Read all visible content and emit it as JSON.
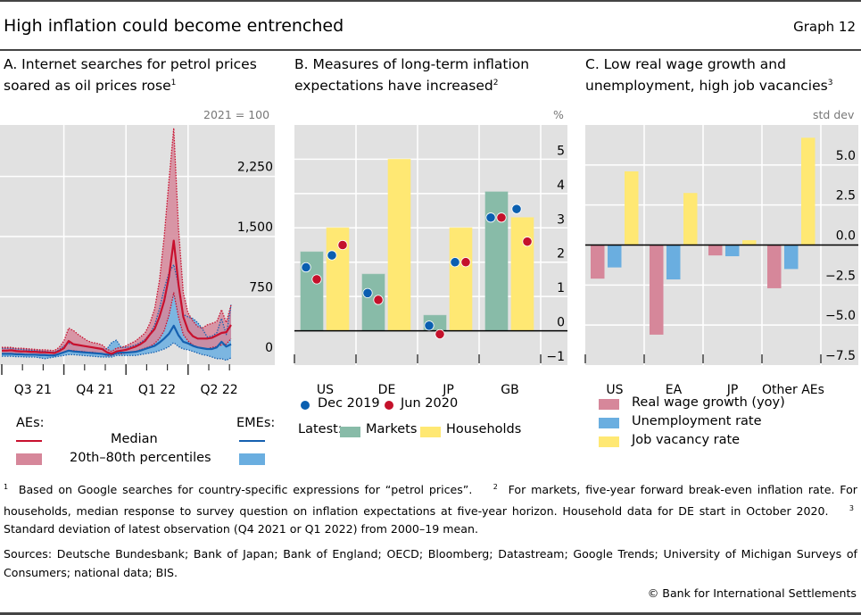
{
  "header": {
    "title": "High inflation could become entrenched",
    "graph_number": "Graph 12"
  },
  "panels": {
    "a": {
      "title_line1": "A. Internet searches for petrol prices",
      "title_line2": "soared as oil prices rose",
      "footnote_mark": "1",
      "unit": "2021 = 100"
    },
    "b": {
      "title_line1": "B. Measures of long-term inflation",
      "title_line2": "expectations have increased",
      "footnote_mark": "2",
      "unit": "%"
    },
    "c": {
      "title_line1": "C. Low real wage growth and",
      "title_line2": "unemployment, high job vacancies",
      "footnote_mark": "3",
      "unit": "std dev"
    }
  },
  "legend_a": {
    "aes": "AEs:",
    "emes": "EMEs:",
    "median": "Median",
    "percentiles": "20th–80th percentiles"
  },
  "legend_b": {
    "dec2019": "Dec 2019",
    "jun2020": "Jun 2020",
    "latest": "Latest:",
    "markets": "Markets",
    "households": "Households"
  },
  "legend_c": {
    "wage": "Real wage growth (yoy)",
    "unemp": "Unemployment rate",
    "vac": "Job vacancy rate"
  },
  "colors": {
    "ae_line": "#c8102e",
    "ae_band": "#d6879a",
    "eme_line": "#1560b0",
    "eme_band": "#6aaee0",
    "markets": "#88bba8",
    "households": "#ffe873",
    "dec2019_dot": "#0a5fb0",
    "jun2020_dot": "#c4112b",
    "wage": "#d6879a",
    "unemp": "#6aaee0",
    "vac": "#ffe873",
    "plot_bg": "#e1e1e1"
  },
  "chart_data": [
    {
      "id": "a",
      "type": "area",
      "title": "Internet searches for petrol prices soared as oil prices rose",
      "ylabel": "2021 = 100",
      "ylim": [
        -100,
        2890
      ],
      "yticks": [
        0,
        750,
        1500,
        2250
      ],
      "ytick_labels": [
        "0",
        "750",
        "1,500",
        "2,250"
      ],
      "xtick_labels": [
        "Q3 21",
        "Q4 21",
        "Q1 22",
        "Q2 22"
      ],
      "x_unit": "week index from start of Q3 2021 (13 weeks per quarter)",
      "x": [
        0,
        1,
        2,
        3,
        4,
        5,
        6,
        7,
        8,
        9,
        10,
        11,
        12,
        13,
        14,
        15,
        16,
        17,
        18,
        19,
        20,
        21,
        22,
        23,
        24,
        25,
        26,
        27,
        28,
        29,
        30,
        31,
        32,
        33,
        34,
        35,
        36,
        37,
        38,
        39,
        40,
        41,
        42,
        43,
        44,
        45,
        46,
        47,
        48
      ],
      "series": [
        {
          "name": "AEs median",
          "values": [
            80,
            80,
            85,
            75,
            70,
            70,
            65,
            65,
            60,
            60,
            55,
            50,
            75,
            110,
            200,
            160,
            150,
            140,
            130,
            120,
            110,
            100,
            60,
            40,
            70,
            80,
            90,
            110,
            130,
            160,
            200,
            280,
            350,
            500,
            700,
            1000,
            1450,
            900,
            500,
            330,
            260,
            230,
            230,
            230,
            240,
            270,
            300,
            310,
            400
          ]
        },
        {
          "name": "AEs 20th percentile",
          "values": [
            40,
            40,
            45,
            40,
            35,
            35,
            30,
            30,
            30,
            25,
            25,
            25,
            40,
            60,
            80,
            80,
            70,
            70,
            60,
            60,
            50,
            40,
            20,
            20,
            40,
            40,
            50,
            60,
            70,
            90,
            110,
            130,
            170,
            230,
            330,
            520,
            800,
            500,
            280,
            200,
            150,
            120,
            110,
            100,
            120,
            130,
            150,
            160,
            230
          ]
        },
        {
          "name": "AEs 80th percentile",
          "values": [
            120,
            120,
            120,
            110,
            110,
            105,
            100,
            95,
            90,
            90,
            85,
            80,
            120,
            200,
            360,
            330,
            280,
            240,
            200,
            180,
            170,
            150,
            100,
            70,
            110,
            120,
            140,
            170,
            200,
            250,
            300,
            420,
            600,
            950,
            1500,
            2200,
            2850,
            1600,
            800,
            550,
            450,
            380,
            360,
            400,
            420,
            440,
            590,
            430,
            650
          ]
        },
        {
          "name": "EMEs median",
          "values": [
            40,
            40,
            40,
            35,
            35,
            30,
            30,
            30,
            25,
            25,
            20,
            20,
            40,
            60,
            80,
            70,
            65,
            60,
            55,
            50,
            45,
            40,
            30,
            30,
            50,
            55,
            55,
            60,
            65,
            80,
            100,
            120,
            140,
            180,
            230,
            290,
            390,
            270,
            190,
            170,
            140,
            120,
            110,
            100,
            100,
            120,
            190,
            130,
            160
          ]
        },
        {
          "name": "EMEs 20th percentile",
          "values": [
            10,
            10,
            10,
            5,
            5,
            0,
            0,
            0,
            -10,
            -20,
            -10,
            0,
            10,
            20,
            30,
            30,
            25,
            20,
            15,
            10,
            5,
            0,
            0,
            0,
            20,
            20,
            20,
            20,
            20,
            30,
            40,
            50,
            60,
            80,
            100,
            130,
            180,
            130,
            100,
            90,
            70,
            50,
            30,
            20,
            0,
            -20,
            -20,
            -40,
            -10
          ]
        },
        {
          "name": "EMEs 80th percentile",
          "values": [
            110,
            110,
            110,
            100,
            95,
            90,
            85,
            80,
            75,
            70,
            65,
            60,
            90,
            140,
            170,
            160,
            150,
            140,
            130,
            120,
            110,
            100,
            100,
            180,
            210,
            120,
            120,
            130,
            150,
            180,
            220,
            290,
            400,
            600,
            850,
            1050,
            1150,
            900,
            530,
            500,
            480,
            430,
            350,
            250,
            260,
            300,
            480,
            280,
            650
          ]
        }
      ]
    },
    {
      "id": "b",
      "type": "bar",
      "title": "Measures of long-term inflation expectations have increased",
      "ylabel": "%",
      "ylim": [
        -1,
        6
      ],
      "yticks": [
        -1,
        0,
        1,
        2,
        3,
        4,
        5
      ],
      "ytick_labels": [
        "−1",
        "0",
        "1",
        "2",
        "3",
        "4",
        "5"
      ],
      "categories": [
        "US",
        "DE",
        "JP",
        "GB"
      ],
      "series": [
        {
          "name": "Latest: Markets",
          "values": [
            2.3,
            1.65,
            0.45,
            4.05
          ]
        },
        {
          "name": "Latest: Households",
          "values": [
            3.0,
            5.0,
            3.0,
            3.3
          ]
        }
      ],
      "points": [
        {
          "name": "Dec 2019",
          "markets": [
            1.85,
            1.1,
            0.15,
            3.3
          ],
          "households": [
            2.2,
            null,
            2.0,
            3.55
          ]
        },
        {
          "name": "Jun 2020",
          "markets": [
            1.5,
            0.9,
            -0.1,
            3.3
          ],
          "households": [
            2.5,
            null,
            2.0,
            2.6
          ]
        }
      ]
    },
    {
      "id": "c",
      "type": "bar",
      "title": "Low real wage growth and unemployment, high job vacancies",
      "ylabel": "std dev",
      "ylim": [
        -7.5,
        7.5
      ],
      "yticks": [
        -7.5,
        -5.0,
        -2.5,
        0.0,
        2.5,
        5.0
      ],
      "ytick_labels": [
        "−7.5",
        "−5.0",
        "−2.5",
        "0.0",
        "2.5",
        "5.0"
      ],
      "categories": [
        "US",
        "EA",
        "JP",
        "Other AEs"
      ],
      "series": [
        {
          "name": "Real wage growth (yoy)",
          "values": [
            -2.1,
            -5.6,
            -0.65,
            -2.7
          ]
        },
        {
          "name": "Unemployment rate",
          "values": [
            -1.4,
            -2.15,
            -0.7,
            -1.5
          ]
        },
        {
          "name": "Job vacancy rate",
          "values": [
            4.6,
            3.25,
            0.3,
            6.7
          ]
        }
      ]
    }
  ],
  "footnotes": {
    "n1_mark": "1",
    "n1": "Based on Google searches for country-specific expressions for “petrol prices”.",
    "n2_mark": "2",
    "n2": "For markets, five-year forward break-even inflation rate. For households, median response to survey question on inflation expectations at five-year horizon. Household data for DE start in October 2020.",
    "n3_mark": "3",
    "n3": "Standard deviation of latest observation (Q4 2021 or Q1 2022) from 2000–19 mean."
  },
  "sources": "Sources: Deutsche Bundesbank; Bank of Japan; Bank of England; OECD; Bloomberg; Datastream; Google Trends; University of Michigan Surveys of Consumers; national data; BIS.",
  "copyright": "© Bank for International Settlements"
}
